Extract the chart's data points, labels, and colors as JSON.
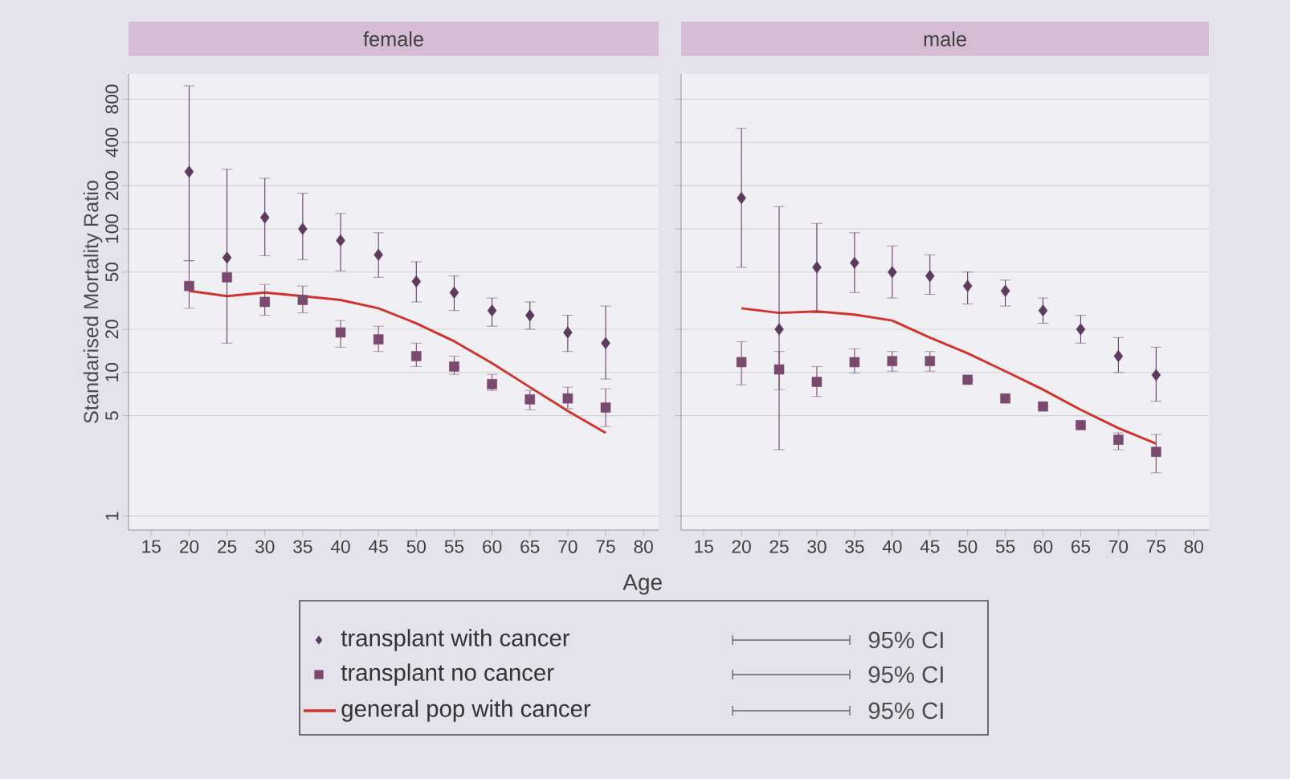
{
  "chart_data": [
    {
      "type": "scatter",
      "title": "female",
      "xlabel": "Age",
      "ylabel": "Standarised Mortality Ratio",
      "x": [
        20,
        25,
        30,
        35,
        40,
        45,
        50,
        55,
        60,
        65,
        70,
        75
      ],
      "xlim": [
        12,
        82
      ],
      "xticks": [
        15,
        20,
        25,
        30,
        35,
        40,
        45,
        50,
        55,
        60,
        65,
        70,
        75,
        80
      ],
      "ylim": [
        0.8,
        1200
      ],
      "yticks": [
        1,
        5,
        10,
        20,
        50,
        100,
        200,
        400,
        800
      ],
      "log": "y",
      "grid": "y",
      "legend": "bottom",
      "annotations": [
        "95% CI",
        "95% CI",
        "95% CI"
      ],
      "series": [
        {
          "name": "transplant with cancer",
          "type": "scatter",
          "marker": "diamond",
          "color": "#5c3b5e",
          "values": [
            250,
            63,
            120,
            100,
            83,
            66,
            43,
            36,
            27,
            25,
            19,
            16
          ],
          "errors": [
            [
              60,
              990
            ],
            [
              16,
              260
            ],
            [
              65,
              225
            ],
            [
              61,
              177
            ],
            [
              51,
              128
            ],
            [
              46,
              94
            ],
            [
              31,
              59
            ],
            [
              27,
              47
            ],
            [
              21,
              33
            ],
            [
              20,
              31
            ],
            [
              14,
              25
            ],
            [
              9,
              29
            ]
          ]
        },
        {
          "name": "transplant no cancer",
          "type": "scatter",
          "marker": "square",
          "color": "#7a4a6e",
          "values": [
            40,
            46,
            31,
            32,
            19,
            17,
            13,
            11,
            8.3,
            6.5,
            6.6,
            5.7
          ],
          "errors": [
            [
              28,
              60
            ],
            null,
            [
              25,
              41
            ],
            [
              26,
              40
            ],
            [
              15,
              23
            ],
            [
              14,
              21
            ],
            [
              11,
              16
            ],
            [
              9.7,
              13
            ],
            [
              7.5,
              9.7
            ],
            [
              5.5,
              7.5
            ],
            [
              5.6,
              7.9
            ],
            [
              4.2,
              7.7
            ]
          ]
        },
        {
          "name": "general pop with cancer",
          "type": "line",
          "line_style": "solid",
          "color": "#d0342c",
          "values": [
            37,
            34,
            36,
            34,
            32,
            28,
            22,
            16.5,
            11.6,
            7.9,
            5.4,
            3.8
          ]
        }
      ]
    },
    {
      "type": "scatter",
      "title": "male",
      "x": [
        20,
        25,
        30,
        35,
        40,
        45,
        50,
        55,
        60,
        65,
        70,
        75
      ],
      "xlim": [
        12,
        82
      ],
      "xticks": [
        15,
        20,
        25,
        30,
        35,
        40,
        45,
        50,
        55,
        60,
        65,
        70,
        75,
        80
      ],
      "ylim": [
        0.8,
        1200
      ],
      "yticks": [
        1,
        5,
        10,
        20,
        50,
        100,
        200,
        400,
        800
      ],
      "log": "y",
      "grid": "y",
      "tick_labels": "x",
      "series": [
        {
          "type": "scatter",
          "marker": "diamond",
          "color": "#5c3b5e",
          "values": [
            164,
            20,
            54,
            58,
            50,
            47,
            40,
            37,
            27,
            20,
            13,
            9.6
          ],
          "errors": [
            [
              54,
              500
            ],
            [
              2.9,
              143
            ],
            [
              26,
              109
            ],
            [
              36,
              94
            ],
            [
              33,
              76
            ],
            [
              35,
              66
            ],
            [
              30,
              50
            ],
            [
              29,
              44
            ],
            [
              22,
              33
            ],
            [
              16,
              25
            ],
            [
              10,
              17.5
            ],
            [
              6.3,
              15
            ]
          ]
        },
        {
          "type": "scatter",
          "marker": "square",
          "color": "#7a4a6e",
          "values": [
            11.8,
            10.5,
            8.6,
            11.8,
            12,
            12,
            8.9,
            6.6,
            5.8,
            4.3,
            3.4,
            2.8
          ],
          "errors": [
            [
              8.2,
              16.4
            ],
            [
              7.6,
              14
            ],
            [
              6.8,
              11
            ],
            [
              9.9,
              14.6
            ],
            [
              10.2,
              14
            ],
            [
              10.2,
              14
            ],
            null,
            null,
            null,
            null,
            [
              2.9,
              3.8
            ],
            [
              2.0,
              3.7
            ]
          ]
        },
        {
          "type": "line",
          "line_style": "solid",
          "color": "#d0342c",
          "values": [
            28,
            26,
            26.6,
            25.3,
            23,
            17.5,
            13.6,
            10.2,
            7.6,
            5.5,
            4.1,
            3.2
          ]
        }
      ]
    }
  ]
}
